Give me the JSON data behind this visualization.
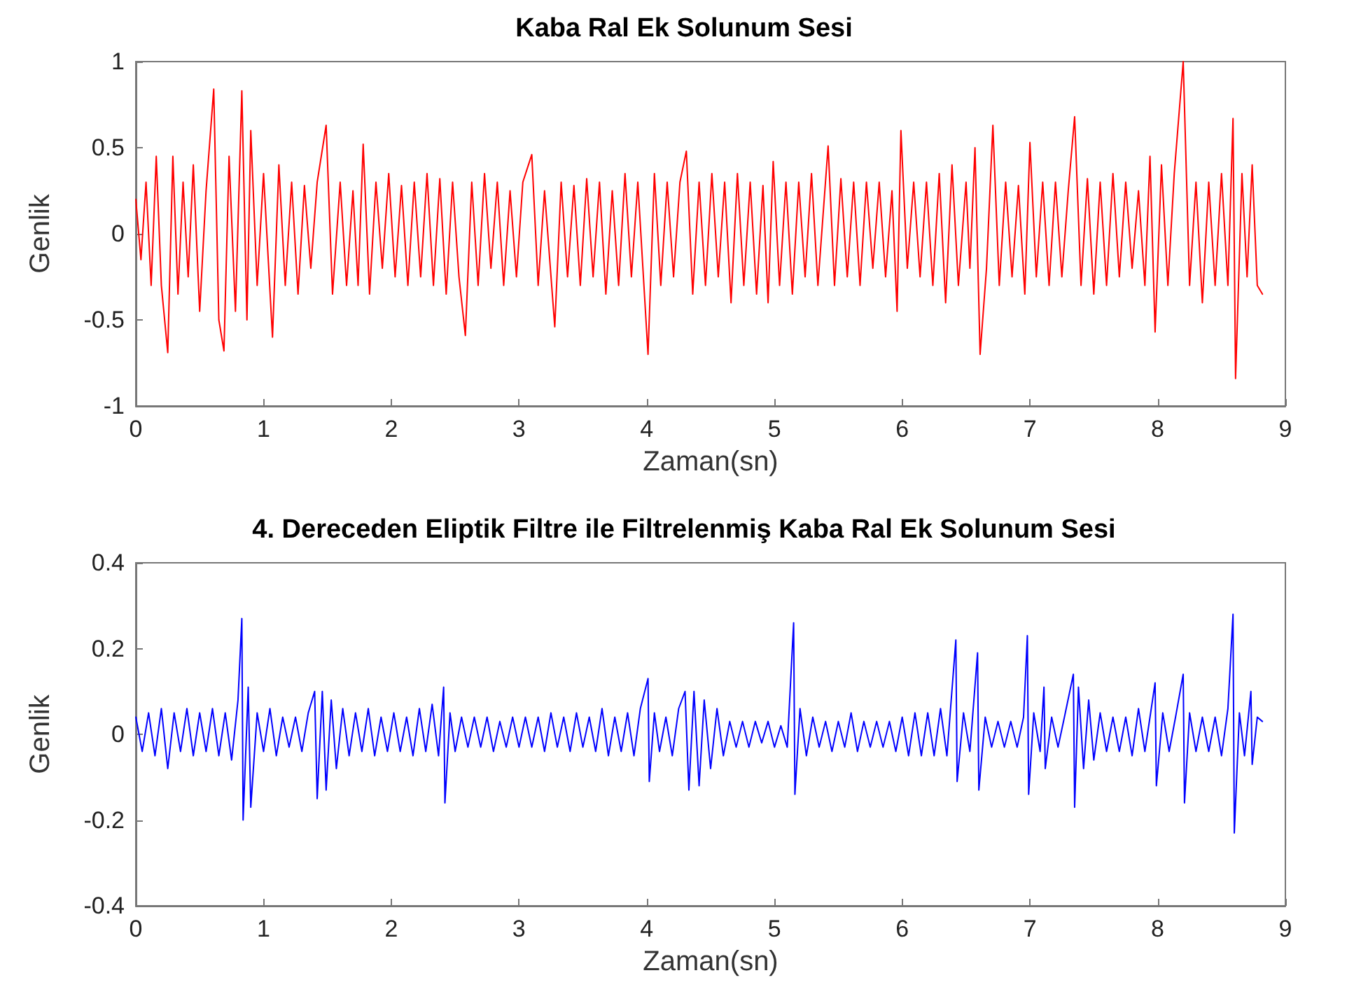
{
  "chart_data": [
    {
      "type": "line",
      "title": "Kaba Ral Ek Solunum Sesi",
      "xlabel": "Zaman(sn)",
      "ylabel": "Genlik",
      "xlim": [
        0,
        9
      ],
      "xticks": [
        0,
        1,
        2,
        3,
        4,
        5,
        6,
        7,
        8,
        9
      ],
      "ylim": [
        -1,
        1
      ],
      "yticks": [
        -1,
        -0.5,
        0,
        0.5,
        1
      ],
      "marker": "none",
      "line_style": "solid",
      "series": [
        {
          "color": "#ff0000",
          "x": [
            0,
            0.04,
            0.08,
            0.12,
            0.16,
            0.2,
            0.25,
            0.29,
            0.33,
            0.37,
            0.41,
            0.45,
            0.5,
            0.55,
            0.61,
            0.65,
            0.69,
            0.73,
            0.78,
            0.83,
            0.87,
            0.9,
            0.95,
            1.0,
            1.07,
            1.12,
            1.17,
            1.22,
            1.27,
            1.32,
            1.37,
            1.42,
            1.49,
            1.54,
            1.6,
            1.65,
            1.7,
            1.74,
            1.78,
            1.83,
            1.88,
            1.93,
            1.98,
            2.03,
            2.08,
            2.13,
            2.18,
            2.23,
            2.28,
            2.33,
            2.38,
            2.43,
            2.48,
            2.53,
            2.58,
            2.63,
            2.68,
            2.73,
            2.78,
            2.83,
            2.88,
            2.93,
            2.98,
            3.03,
            3.1,
            3.15,
            3.2,
            3.28,
            3.33,
            3.38,
            3.43,
            3.48,
            3.53,
            3.58,
            3.63,
            3.68,
            3.73,
            3.78,
            3.83,
            3.88,
            3.93,
            4.01,
            4.06,
            4.11,
            4.16,
            4.21,
            4.26,
            4.31,
            4.36,
            4.41,
            4.46,
            4.51,
            4.56,
            4.61,
            4.66,
            4.71,
            4.76,
            4.81,
            4.86,
            4.91,
            4.95,
            4.99,
            5.04,
            5.09,
            5.14,
            5.19,
            5.24,
            5.29,
            5.34,
            5.42,
            5.47,
            5.52,
            5.57,
            5.62,
            5.67,
            5.72,
            5.77,
            5.82,
            5.87,
            5.92,
            5.96,
            5.99,
            6.04,
            6.09,
            6.14,
            6.19,
            6.24,
            6.29,
            6.34,
            6.39,
            6.44,
            6.5,
            6.53,
            6.57,
            6.61,
            6.66,
            6.71,
            6.76,
            6.81,
            6.86,
            6.91,
            6.96,
            7.0,
            7.05,
            7.1,
            7.15,
            7.2,
            7.25,
            7.3,
            7.35,
            7.4,
            7.45,
            7.5,
            7.55,
            7.6,
            7.65,
            7.7,
            7.75,
            7.8,
            7.85,
            7.9,
            7.94,
            7.98,
            8.03,
            8.08,
            8.13,
            8.2,
            8.25,
            8.3,
            8.35,
            8.4,
            8.45,
            8.5,
            8.55,
            8.59,
            8.61,
            8.66,
            8.7,
            8.74,
            8.78,
            8.82
          ],
          "values": [
            0.2,
            -0.15,
            0.3,
            -0.3,
            0.45,
            -0.3,
            -0.69,
            0.45,
            -0.35,
            0.3,
            -0.25,
            0.4,
            -0.45,
            0.25,
            0.84,
            -0.5,
            -0.68,
            0.45,
            -0.45,
            0.83,
            -0.5,
            0.6,
            -0.3,
            0.35,
            -0.6,
            0.4,
            -0.3,
            0.3,
            -0.35,
            0.28,
            -0.2,
            0.3,
            0.63,
            -0.35,
            0.3,
            -0.3,
            0.25,
            -0.3,
            0.52,
            -0.35,
            0.3,
            -0.2,
            0.35,
            -0.25,
            0.28,
            -0.3,
            0.3,
            -0.25,
            0.35,
            -0.3,
            0.32,
            -0.35,
            0.3,
            -0.25,
            -0.59,
            0.3,
            -0.3,
            0.35,
            -0.2,
            0.3,
            -0.3,
            0.25,
            -0.25,
            0.3,
            0.46,
            -0.3,
            0.25,
            -0.54,
            0.3,
            -0.25,
            0.28,
            -0.3,
            0.32,
            -0.25,
            0.3,
            -0.35,
            0.25,
            -0.3,
            0.35,
            -0.25,
            0.3,
            -0.7,
            0.35,
            -0.3,
            0.3,
            -0.25,
            0.3,
            0.48,
            -0.35,
            0.3,
            -0.3,
            0.35,
            -0.25,
            0.3,
            -0.4,
            0.35,
            -0.3,
            0.3,
            -0.35,
            0.28,
            -0.4,
            0.42,
            -0.3,
            0.3,
            -0.35,
            0.3,
            -0.25,
            0.35,
            -0.3,
            0.51,
            -0.3,
            0.32,
            -0.25,
            0.3,
            -0.3,
            0.3,
            -0.2,
            0.3,
            -0.25,
            0.25,
            -0.45,
            0.6,
            -0.2,
            0.3,
            -0.25,
            0.3,
            -0.3,
            0.35,
            -0.4,
            0.4,
            -0.3,
            0.3,
            -0.2,
            0.5,
            -0.7,
            -0.2,
            0.63,
            -0.3,
            0.3,
            -0.25,
            0.28,
            -0.35,
            0.53,
            -0.25,
            0.3,
            -0.3,
            0.3,
            -0.25,
            0.25,
            0.68,
            -0.3,
            0.32,
            -0.35,
            0.3,
            -0.3,
            0.35,
            -0.25,
            0.3,
            -0.2,
            0.25,
            -0.3,
            0.45,
            -0.57,
            0.4,
            -0.3,
            0.35,
            1.0,
            -0.3,
            0.3,
            -0.4,
            0.3,
            -0.3,
            0.35,
            -0.3,
            0.67,
            -0.84,
            0.35,
            -0.25,
            0.4,
            -0.3,
            -0.35
          ]
        }
      ]
    },
    {
      "type": "line",
      "title": "4. Dereceden Eliptik Filtre ile Filtrelenmiş Kaba Ral Ek Solunum Sesi",
      "xlabel": "Zaman(sn)",
      "ylabel": "Genlik",
      "xlim": [
        0,
        9
      ],
      "xticks": [
        0,
        1,
        2,
        3,
        4,
        5,
        6,
        7,
        8,
        9
      ],
      "ylim": [
        -0.4,
        0.4
      ],
      "yticks": [
        -0.4,
        -0.2,
        0,
        0.2,
        0.4
      ],
      "marker": "none",
      "line_style": "solid",
      "series": [
        {
          "color": "#0000ff",
          "x": [
            0,
            0.05,
            0.1,
            0.15,
            0.2,
            0.25,
            0.3,
            0.35,
            0.4,
            0.45,
            0.5,
            0.55,
            0.6,
            0.65,
            0.7,
            0.75,
            0.8,
            0.83,
            0.84,
            0.88,
            0.9,
            0.95,
            1.0,
            1.05,
            1.1,
            1.15,
            1.2,
            1.25,
            1.3,
            1.35,
            1.4,
            1.42,
            1.46,
            1.49,
            1.53,
            1.57,
            1.62,
            1.67,
            1.72,
            1.77,
            1.82,
            1.87,
            1.92,
            1.97,
            2.02,
            2.07,
            2.12,
            2.17,
            2.22,
            2.27,
            2.32,
            2.37,
            2.41,
            2.42,
            2.46,
            2.5,
            2.55,
            2.6,
            2.65,
            2.7,
            2.75,
            2.8,
            2.85,
            2.9,
            2.95,
            3.0,
            3.05,
            3.1,
            3.15,
            3.2,
            3.25,
            3.3,
            3.35,
            3.4,
            3.45,
            3.5,
            3.55,
            3.6,
            3.65,
            3.7,
            3.75,
            3.8,
            3.85,
            3.9,
            3.95,
            4.01,
            4.02,
            4.06,
            4.1,
            4.15,
            4.2,
            4.25,
            4.3,
            4.33,
            4.37,
            4.41,
            4.45,
            4.5,
            4.55,
            4.6,
            4.65,
            4.7,
            4.75,
            4.8,
            4.85,
            4.9,
            4.95,
            5.0,
            5.05,
            5.1,
            5.15,
            5.16,
            5.2,
            5.25,
            5.3,
            5.35,
            5.4,
            5.45,
            5.5,
            5.55,
            5.6,
            5.65,
            5.7,
            5.75,
            5.8,
            5.85,
            5.9,
            5.95,
            6.0,
            6.05,
            6.1,
            6.15,
            6.2,
            6.25,
            6.3,
            6.35,
            6.42,
            6.43,
            6.48,
            6.53,
            6.59,
            6.6,
            6.65,
            6.7,
            6.75,
            6.8,
            6.85,
            6.9,
            6.95,
            6.98,
            6.99,
            7.03,
            7.08,
            7.11,
            7.12,
            7.17,
            7.22,
            7.27,
            7.34,
            7.35,
            7.38,
            7.42,
            7.46,
            7.5,
            7.55,
            7.6,
            7.65,
            7.7,
            7.75,
            7.8,
            7.85,
            7.9,
            7.94,
            7.98,
            7.99,
            8.04,
            8.09,
            8.14,
            8.2,
            8.21,
            8.25,
            8.3,
            8.35,
            8.4,
            8.45,
            8.5,
            8.55,
            8.59,
            8.6,
            8.64,
            8.68,
            8.73,
            8.74,
            8.78,
            8.82
          ],
          "values": [
            0.04,
            -0.04,
            0.05,
            -0.05,
            0.06,
            -0.08,
            0.05,
            -0.04,
            0.06,
            -0.05,
            0.05,
            -0.04,
            0.06,
            -0.05,
            0.05,
            -0.06,
            0.08,
            0.27,
            -0.2,
            0.11,
            -0.17,
            0.05,
            -0.04,
            0.06,
            -0.05,
            0.04,
            -0.03,
            0.04,
            -0.04,
            0.05,
            0.1,
            -0.15,
            0.1,
            -0.13,
            0.08,
            -0.08,
            0.06,
            -0.05,
            0.05,
            -0.04,
            0.06,
            -0.05,
            0.04,
            -0.04,
            0.05,
            -0.04,
            0.04,
            -0.05,
            0.06,
            -0.04,
            0.07,
            -0.05,
            0.11,
            -0.16,
            0.05,
            -0.04,
            0.04,
            -0.03,
            0.04,
            -0.03,
            0.04,
            -0.04,
            0.03,
            -0.03,
            0.04,
            -0.03,
            0.04,
            -0.03,
            0.04,
            -0.04,
            0.05,
            -0.03,
            0.04,
            -0.04,
            0.05,
            -0.03,
            0.04,
            -0.04,
            0.06,
            -0.05,
            0.04,
            -0.04,
            0.05,
            -0.05,
            0.06,
            0.13,
            -0.11,
            0.05,
            -0.04,
            0.04,
            -0.05,
            0.06,
            0.1,
            -0.13,
            0.1,
            -0.12,
            0.08,
            -0.08,
            0.06,
            -0.05,
            0.03,
            -0.03,
            0.03,
            -0.03,
            0.03,
            -0.02,
            0.03,
            -0.03,
            0.02,
            -0.03,
            0.26,
            -0.14,
            0.06,
            -0.05,
            0.04,
            -0.03,
            0.03,
            -0.04,
            0.03,
            -0.03,
            0.05,
            -0.04,
            0.03,
            -0.03,
            0.03,
            -0.03,
            0.03,
            -0.04,
            0.04,
            -0.05,
            0.05,
            -0.05,
            0.05,
            -0.05,
            0.06,
            -0.05,
            0.22,
            -0.11,
            0.05,
            -0.04,
            0.19,
            -0.13,
            0.04,
            -0.03,
            0.03,
            -0.03,
            0.03,
            -0.03,
            0.04,
            0.23,
            -0.14,
            0.05,
            -0.04,
            0.11,
            -0.08,
            0.04,
            -0.03,
            0.04,
            0.14,
            -0.17,
            0.11,
            -0.08,
            0.08,
            -0.06,
            0.05,
            -0.04,
            0.04,
            -0.04,
            0.04,
            -0.05,
            0.06,
            -0.04,
            0.04,
            0.12,
            -0.12,
            0.05,
            -0.04,
            0.04,
            0.14,
            -0.16,
            0.05,
            -0.04,
            0.04,
            -0.04,
            0.04,
            -0.05,
            0.06,
            0.28,
            -0.23,
            0.05,
            -0.05,
            0.1,
            -0.07,
            0.04,
            0.03
          ]
        }
      ]
    }
  ]
}
